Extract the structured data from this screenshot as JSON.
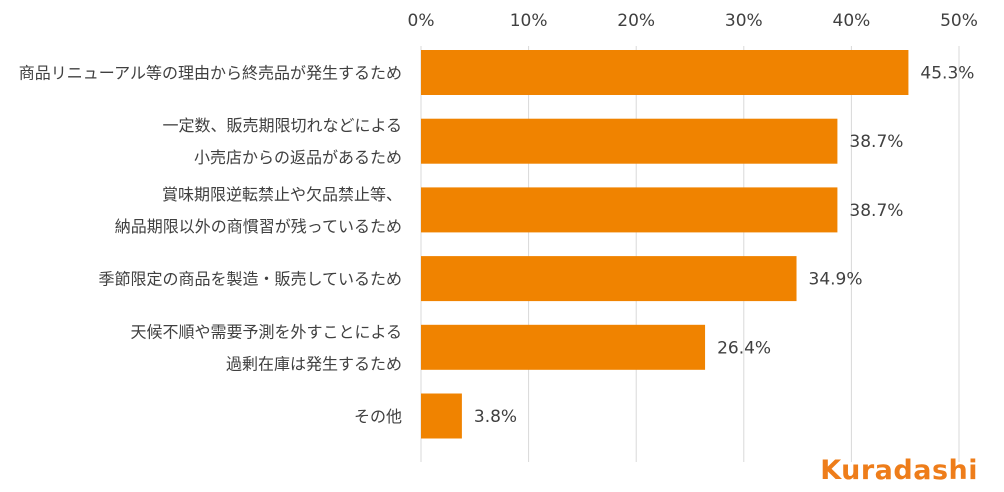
{
  "chart_data": {
    "type": "bar",
    "orientation": "horizontal",
    "title": "",
    "xlabel": "",
    "ylabel": "",
    "xlim": [
      0,
      50
    ],
    "x_ticks": [
      "0%",
      "10%",
      "20%",
      "30%",
      "40%",
      "50%"
    ],
    "x_tick_values": [
      0,
      10,
      20,
      30,
      40,
      50
    ],
    "grid": true,
    "bar_color": "#f08300",
    "categories": [
      [
        "商品リニューアル等の理由から終売品が発生するため"
      ],
      [
        "一定数、販売期限切れなどによる",
        "小売店からの返品があるため"
      ],
      [
        "賞味期限逆転禁止や欠品禁止等、",
        "納品期限以外の商慣習が残っているため"
      ],
      [
        "季節限定の商品を製造・販売しているため"
      ],
      [
        "天候不順や需要予測を外すことによる",
        "過剰在庫は発生するため"
      ],
      [
        "その他"
      ]
    ],
    "values": [
      45.3,
      38.7,
      38.7,
      34.9,
      26.4,
      3.8
    ],
    "value_labels": [
      "45.3%",
      "38.7%",
      "38.7%",
      "34.9%",
      "26.4%",
      "3.8%"
    ]
  },
  "logo_text": "Kuradashi",
  "logo_color": "#ee7d1a"
}
